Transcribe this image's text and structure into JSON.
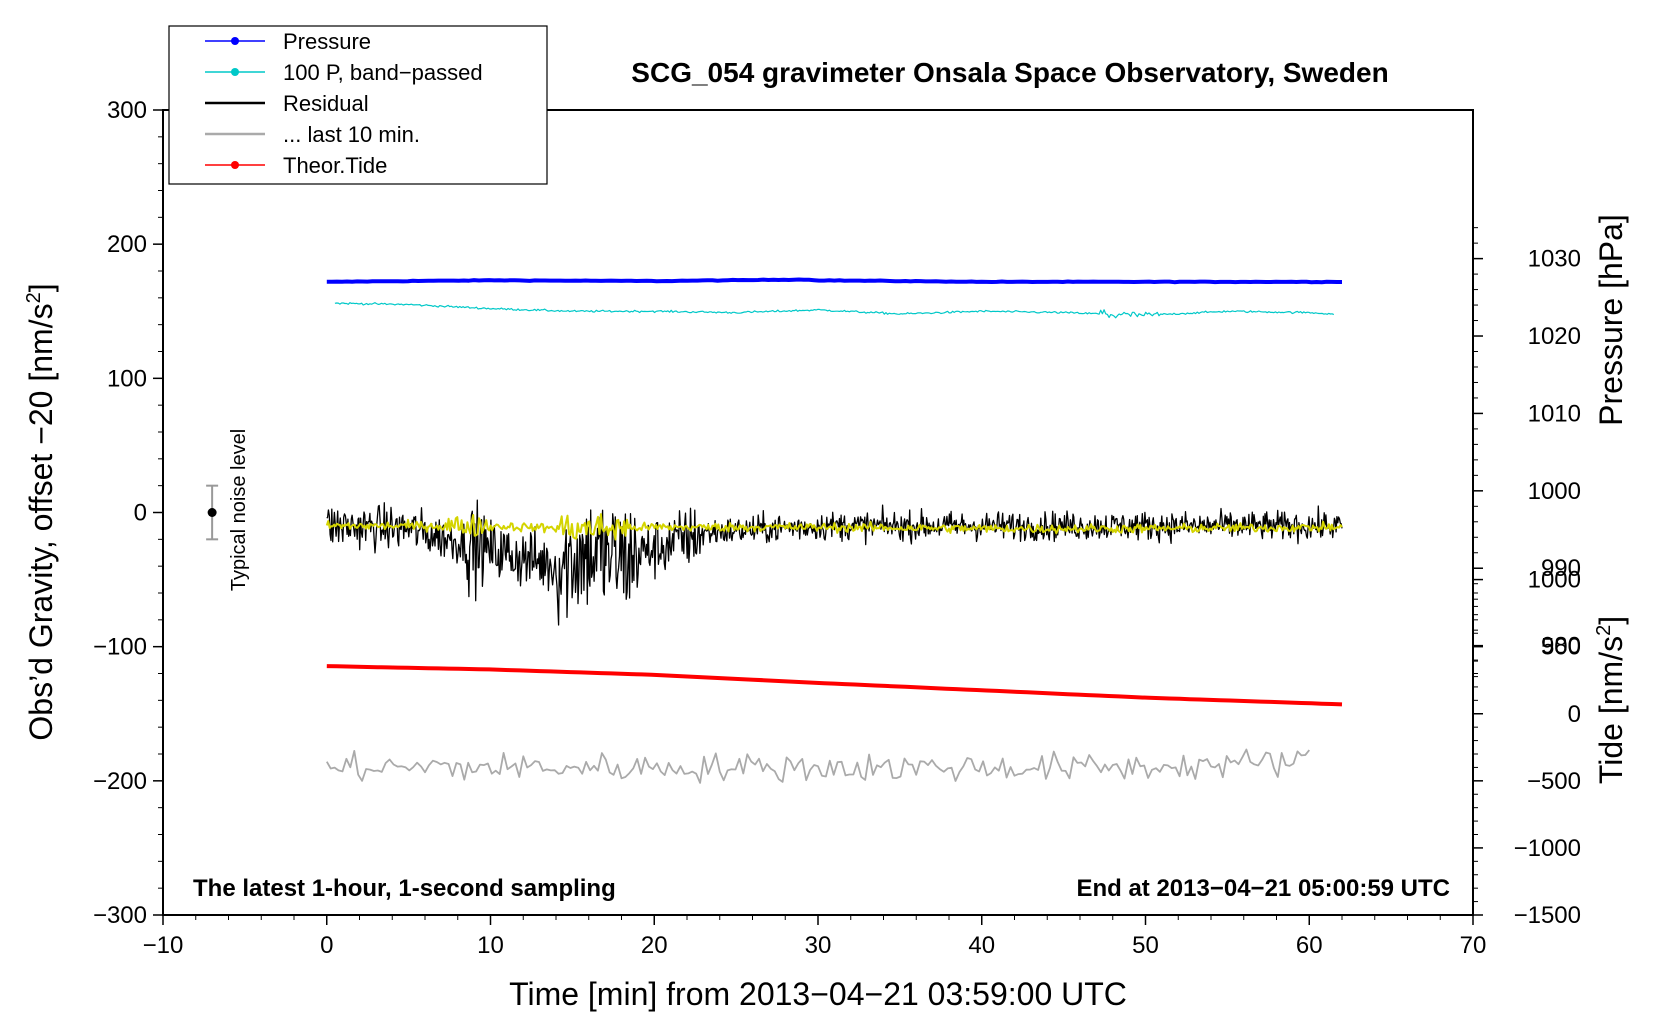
{
  "chart_data": {
    "type": "line",
    "title": "SCG_054 gravimeter Onsala Space Observatory, Sweden",
    "xlabel": "Time [min] from 2013−04−21 03:59:00 UTC",
    "ylabel": "Obs’d Gravity, offset −20 [nm/s",
    "ylabel_sup": "2",
    "ylabel_end": "]",
    "xlim": [
      -10,
      70
    ],
    "ylim": [
      -300,
      300
    ],
    "x_ticks": [
      -10,
      0,
      10,
      20,
      30,
      40,
      50,
      60,
      70
    ],
    "x_tick_labels": [
      "−10",
      "0",
      "10",
      "20",
      "30",
      "40",
      "50",
      "60",
      "70"
    ],
    "y_ticks": [
      -300,
      -200,
      -100,
      0,
      100,
      200,
      300
    ],
    "y_tick_labels": [
      "−300",
      "−200",
      "−100",
      "0",
      "100",
      "200",
      "300"
    ],
    "pressure_axis": {
      "label": "Pressure [hPa]",
      "ticks": [
        980,
        990,
        1000,
        1010,
        1020,
        1030
      ],
      "tick_labels": [
        "980",
        "990",
        "1000",
        "1010",
        "1020",
        "1030"
      ],
      "range": [
        945.2,
        1049.2
      ]
    },
    "tide_axis": {
      "label": "Tide [nm/s",
      "label_sup": "2",
      "label_end": "]",
      "ticks": [
        -1500,
        -1000,
        -500,
        0,
        500,
        1000
      ],
      "tick_labels": [
        "−1500",
        "−1000",
        "−500",
        "0",
        "500",
        "1000"
      ],
      "range": [
        -1500,
        4500
      ]
    },
    "annotations": {
      "left": "The latest 1-hour, 1-second sampling",
      "right": "End at 2013−04−21 05:00:59 UTC",
      "noise": "Typical noise level"
    },
    "noise_bar": {
      "x": -7,
      "center": 0,
      "low": -20,
      "high": 20
    },
    "legend": [
      {
        "label": "Pressure",
        "color": "#0000ff",
        "marker": true
      },
      {
        "label": "100 P, band−passed",
        "color": "#00c8c8",
        "marker": true
      },
      {
        "label": "Residual",
        "color": "#000000",
        "marker": false
      },
      {
        "label": "... last 10 min.",
        "color": "#aaaaaa",
        "marker": false
      },
      {
        "label": "Theor.Tide",
        "color": "#ff0000",
        "marker": true
      }
    ],
    "series": [
      {
        "name": "Pressure",
        "color": "#0000ff",
        "axis": "pressure",
        "x": [
          0,
          10,
          20,
          29,
          30,
          40,
          50,
          62
        ],
        "values": [
          1027.0,
          1027.2,
          1027.1,
          1027.3,
          1027.2,
          1027.0,
          1027.0,
          1027.0
        ]
      },
      {
        "name": "100 P, band-passed",
        "color": "#00c8c8",
        "axis": "gravity",
        "x": [
          0.5,
          5,
          10,
          15,
          20,
          25,
          30,
          35,
          40,
          45,
          47.5,
          50,
          55,
          60,
          61.5
        ],
        "values": [
          156,
          155,
          152,
          150,
          150,
          149,
          151,
          148,
          150,
          149,
          148,
          147,
          150,
          149,
          148
        ]
      },
      {
        "name": "Residual",
        "color": "#000000",
        "axis": "gravity",
        "x": [
          0,
          5,
          9,
          14,
          16,
          18,
          23,
          30,
          40,
          50,
          62
        ],
        "values": [
          -10,
          -12,
          -25,
          -40,
          -30,
          -35,
          -15,
          -10,
          -10,
          -10,
          -10
        ]
      },
      {
        "name": "Residual (filtered)",
        "color": "#d4d400",
        "axis": "gravity",
        "x": [
          0,
          10,
          15,
          20,
          30,
          40,
          50,
          62
        ],
        "values": [
          -10,
          -10,
          -12,
          -11,
          -11,
          -12,
          -12,
          -11
        ]
      },
      {
        "name": "... last 10 min.",
        "color": "#aaaaaa",
        "axis": "gravity",
        "x": [
          0,
          10,
          20,
          30,
          40,
          50,
          60
        ],
        "values": [
          -190,
          -190,
          -190,
          -190,
          -190,
          -190,
          -185
        ]
      },
      {
        "name": "Theor.Tide",
        "color": "#ff0000",
        "axis": "tide",
        "x": [
          0,
          10,
          20,
          30,
          40,
          50,
          62
        ],
        "values": [
          355,
          330,
          290,
          230,
          175,
          120,
          70
        ]
      }
    ]
  }
}
